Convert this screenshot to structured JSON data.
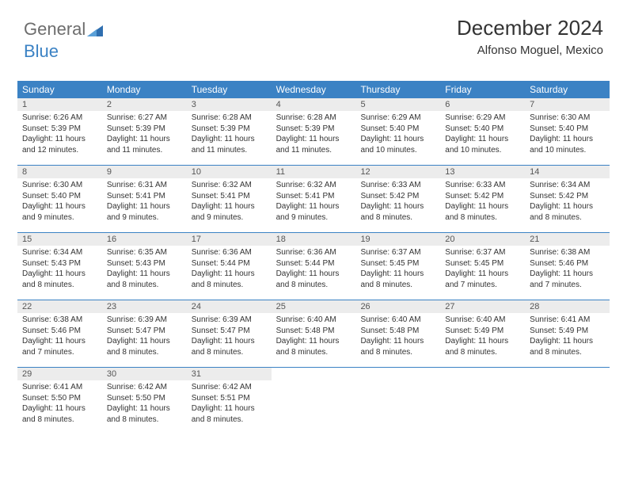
{
  "logo": {
    "text1": "General",
    "text2": "Blue"
  },
  "title": "December 2024",
  "location": "Alfonso Moguel, Mexico",
  "colors": {
    "header_bg": "#3b82c4",
    "header_text": "#ffffff",
    "daynum_bg": "#ececec",
    "daynum_text": "#555555",
    "body_text": "#333333",
    "divider": "#3b82c4"
  },
  "day_names": [
    "Sunday",
    "Monday",
    "Tuesday",
    "Wednesday",
    "Thursday",
    "Friday",
    "Saturday"
  ],
  "weeks": [
    [
      {
        "n": "1",
        "sr": "Sunrise: 6:26 AM",
        "ss": "Sunset: 5:39 PM",
        "d1": "Daylight: 11 hours",
        "d2": "and 12 minutes."
      },
      {
        "n": "2",
        "sr": "Sunrise: 6:27 AM",
        "ss": "Sunset: 5:39 PM",
        "d1": "Daylight: 11 hours",
        "d2": "and 11 minutes."
      },
      {
        "n": "3",
        "sr": "Sunrise: 6:28 AM",
        "ss": "Sunset: 5:39 PM",
        "d1": "Daylight: 11 hours",
        "d2": "and 11 minutes."
      },
      {
        "n": "4",
        "sr": "Sunrise: 6:28 AM",
        "ss": "Sunset: 5:39 PM",
        "d1": "Daylight: 11 hours",
        "d2": "and 11 minutes."
      },
      {
        "n": "5",
        "sr": "Sunrise: 6:29 AM",
        "ss": "Sunset: 5:40 PM",
        "d1": "Daylight: 11 hours",
        "d2": "and 10 minutes."
      },
      {
        "n": "6",
        "sr": "Sunrise: 6:29 AM",
        "ss": "Sunset: 5:40 PM",
        "d1": "Daylight: 11 hours",
        "d2": "and 10 minutes."
      },
      {
        "n": "7",
        "sr": "Sunrise: 6:30 AM",
        "ss": "Sunset: 5:40 PM",
        "d1": "Daylight: 11 hours",
        "d2": "and 10 minutes."
      }
    ],
    [
      {
        "n": "8",
        "sr": "Sunrise: 6:30 AM",
        "ss": "Sunset: 5:40 PM",
        "d1": "Daylight: 11 hours",
        "d2": "and 9 minutes."
      },
      {
        "n": "9",
        "sr": "Sunrise: 6:31 AM",
        "ss": "Sunset: 5:41 PM",
        "d1": "Daylight: 11 hours",
        "d2": "and 9 minutes."
      },
      {
        "n": "10",
        "sr": "Sunrise: 6:32 AM",
        "ss": "Sunset: 5:41 PM",
        "d1": "Daylight: 11 hours",
        "d2": "and 9 minutes."
      },
      {
        "n": "11",
        "sr": "Sunrise: 6:32 AM",
        "ss": "Sunset: 5:41 PM",
        "d1": "Daylight: 11 hours",
        "d2": "and 9 minutes."
      },
      {
        "n": "12",
        "sr": "Sunrise: 6:33 AM",
        "ss": "Sunset: 5:42 PM",
        "d1": "Daylight: 11 hours",
        "d2": "and 8 minutes."
      },
      {
        "n": "13",
        "sr": "Sunrise: 6:33 AM",
        "ss": "Sunset: 5:42 PM",
        "d1": "Daylight: 11 hours",
        "d2": "and 8 minutes."
      },
      {
        "n": "14",
        "sr": "Sunrise: 6:34 AM",
        "ss": "Sunset: 5:42 PM",
        "d1": "Daylight: 11 hours",
        "d2": "and 8 minutes."
      }
    ],
    [
      {
        "n": "15",
        "sr": "Sunrise: 6:34 AM",
        "ss": "Sunset: 5:43 PM",
        "d1": "Daylight: 11 hours",
        "d2": "and 8 minutes."
      },
      {
        "n": "16",
        "sr": "Sunrise: 6:35 AM",
        "ss": "Sunset: 5:43 PM",
        "d1": "Daylight: 11 hours",
        "d2": "and 8 minutes."
      },
      {
        "n": "17",
        "sr": "Sunrise: 6:36 AM",
        "ss": "Sunset: 5:44 PM",
        "d1": "Daylight: 11 hours",
        "d2": "and 8 minutes."
      },
      {
        "n": "18",
        "sr": "Sunrise: 6:36 AM",
        "ss": "Sunset: 5:44 PM",
        "d1": "Daylight: 11 hours",
        "d2": "and 8 minutes."
      },
      {
        "n": "19",
        "sr": "Sunrise: 6:37 AM",
        "ss": "Sunset: 5:45 PM",
        "d1": "Daylight: 11 hours",
        "d2": "and 8 minutes."
      },
      {
        "n": "20",
        "sr": "Sunrise: 6:37 AM",
        "ss": "Sunset: 5:45 PM",
        "d1": "Daylight: 11 hours",
        "d2": "and 7 minutes."
      },
      {
        "n": "21",
        "sr": "Sunrise: 6:38 AM",
        "ss": "Sunset: 5:46 PM",
        "d1": "Daylight: 11 hours",
        "d2": "and 7 minutes."
      }
    ],
    [
      {
        "n": "22",
        "sr": "Sunrise: 6:38 AM",
        "ss": "Sunset: 5:46 PM",
        "d1": "Daylight: 11 hours",
        "d2": "and 7 minutes."
      },
      {
        "n": "23",
        "sr": "Sunrise: 6:39 AM",
        "ss": "Sunset: 5:47 PM",
        "d1": "Daylight: 11 hours",
        "d2": "and 8 minutes."
      },
      {
        "n": "24",
        "sr": "Sunrise: 6:39 AM",
        "ss": "Sunset: 5:47 PM",
        "d1": "Daylight: 11 hours",
        "d2": "and 8 minutes."
      },
      {
        "n": "25",
        "sr": "Sunrise: 6:40 AM",
        "ss": "Sunset: 5:48 PM",
        "d1": "Daylight: 11 hours",
        "d2": "and 8 minutes."
      },
      {
        "n": "26",
        "sr": "Sunrise: 6:40 AM",
        "ss": "Sunset: 5:48 PM",
        "d1": "Daylight: 11 hours",
        "d2": "and 8 minutes."
      },
      {
        "n": "27",
        "sr": "Sunrise: 6:40 AM",
        "ss": "Sunset: 5:49 PM",
        "d1": "Daylight: 11 hours",
        "d2": "and 8 minutes."
      },
      {
        "n": "28",
        "sr": "Sunrise: 6:41 AM",
        "ss": "Sunset: 5:49 PM",
        "d1": "Daylight: 11 hours",
        "d2": "and 8 minutes."
      }
    ],
    [
      {
        "n": "29",
        "sr": "Sunrise: 6:41 AM",
        "ss": "Sunset: 5:50 PM",
        "d1": "Daylight: 11 hours",
        "d2": "and 8 minutes."
      },
      {
        "n": "30",
        "sr": "Sunrise: 6:42 AM",
        "ss": "Sunset: 5:50 PM",
        "d1": "Daylight: 11 hours",
        "d2": "and 8 minutes."
      },
      {
        "n": "31",
        "sr": "Sunrise: 6:42 AM",
        "ss": "Sunset: 5:51 PM",
        "d1": "Daylight: 11 hours",
        "d2": "and 8 minutes."
      },
      null,
      null,
      null,
      null
    ]
  ]
}
